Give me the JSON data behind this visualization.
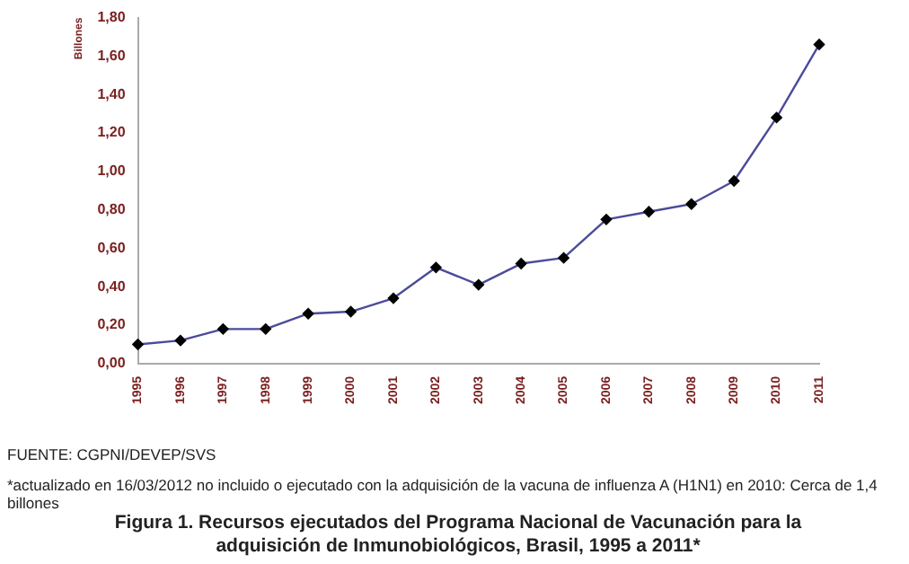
{
  "chart_data": {
    "type": "line",
    "title": "Figura 1. Recursos ejecutados del Programa Nacional de Vacunación para la adquisición de Inmunobiológicos, Brasil, 1995 a 2011*",
    "ylabel": "Billones",
    "categories": [
      "1995",
      "1996",
      "1997",
      "1998",
      "1999",
      "2000",
      "2001",
      "2002",
      "2003",
      "2004",
      "2005",
      "2006",
      "2007",
      "2008",
      "2009",
      "2010",
      "2011"
    ],
    "series": [
      {
        "color": "#4b4b9a",
        "values": [
          0.1,
          0.12,
          0.18,
          0.18,
          0.26,
          0.27,
          0.34,
          0.5,
          0.41,
          0.52,
          0.55,
          0.75,
          0.79,
          0.83,
          0.95,
          1.28,
          1.66
        ]
      }
    ],
    "ylim": [
      0,
      1.8
    ],
    "yticks": [
      {
        "value": 0,
        "label": "0,00"
      },
      {
        "value": 0.2,
        "label": "0,20"
      },
      {
        "value": 0.4,
        "label": "0,40"
      },
      {
        "value": 0.6,
        "label": "0,60"
      },
      {
        "value": 0.8,
        "label": "0,80"
      },
      {
        "value": 1.0,
        "label": "1,00"
      },
      {
        "value": 1.2,
        "label": "1,20"
      },
      {
        "value": 1.4,
        "label": "1,40"
      },
      {
        "value": 1.6,
        "label": "1,60"
      },
      {
        "value": 1.8,
        "label": "1,80"
      }
    ],
    "grid": false,
    "legend": false,
    "marker": "diamond",
    "line_style": "solid",
    "annotations": [
      "FUENTE: CGPNI/DEVEP/SVS",
      "*actualizado en 16/03/2012 no incluido o ejecutado con la adquisición de la vacuna de influenza A (H1N1) en 2010: Cerca de 1,4 billones"
    ]
  }
}
